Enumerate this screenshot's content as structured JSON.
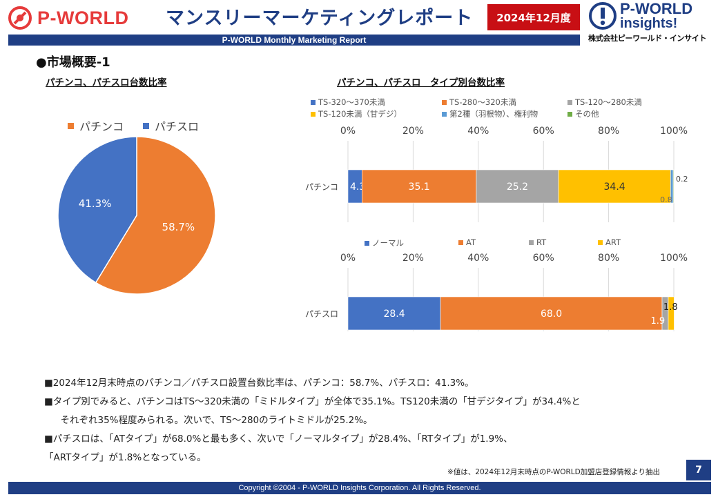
{
  "header": {
    "logo_text": "P-WORLD",
    "title": "マンスリーマーケティングレポート",
    "period": "2024年12月度",
    "subtitle": "P-WORLD Monthly Marketing Report",
    "brand_line1": "P-WORLD",
    "brand_line2": "insights!",
    "company": "株式会社ピーワールド・インサイト",
    "colors": {
      "navy": "#1f3e84",
      "red": "#c80f14",
      "logo_red": "#e63b3b"
    }
  },
  "section_title": "●市場概要-1",
  "chart_data": [
    {
      "type": "pie",
      "title": "パチンコ、パチスロ台数比率",
      "slices": [
        {
          "name": "パチンコ",
          "value": 58.7,
          "label": "58.7%",
          "color": "#ed7d31"
        },
        {
          "name": "パチスロ",
          "value": 41.3,
          "label": "41.3%",
          "color": "#4472c4"
        }
      ],
      "legend": "top"
    },
    {
      "type": "bar",
      "orientation": "horizontal-stacked",
      "title": "パチンコ、パチスロ　タイプ別台数比率",
      "axis_ticks": [
        "0%",
        "20%",
        "40%",
        "60%",
        "80%",
        "100%"
      ],
      "xlim": [
        0,
        100
      ],
      "category": "パチンコ",
      "series": [
        {
          "name": "TS-320～370未満",
          "value": 4.3,
          "label": "4.3",
          "color": "#4472c4"
        },
        {
          "name": "TS-280～320未満",
          "value": 35.1,
          "label": "35.1",
          "color": "#ed7d31"
        },
        {
          "name": "TS-120～280未満",
          "value": 25.2,
          "label": "25.2",
          "color": "#a5a5a5"
        },
        {
          "name": "TS-120未満（甘デジ）",
          "value": 34.4,
          "label": "34.4",
          "color": "#ffc000"
        },
        {
          "name": "第2種（羽根物）、権利物",
          "value": 0.8,
          "label": "0.8",
          "color": "#5b9bd5"
        },
        {
          "name": "その他",
          "value": 0.2,
          "label": "0.2",
          "color": "#70ad47"
        }
      ],
      "legend": "top"
    },
    {
      "type": "bar",
      "orientation": "horizontal-stacked",
      "axis_ticks": [
        "0%",
        "20%",
        "40%",
        "60%",
        "80%",
        "100%"
      ],
      "xlim": [
        0,
        100
      ],
      "category": "パチスロ",
      "series": [
        {
          "name": "ノーマル",
          "value": 28.4,
          "label": "28.4",
          "color": "#4472c4"
        },
        {
          "name": "AT",
          "value": 68.0,
          "label": "68.0",
          "color": "#ed7d31"
        },
        {
          "name": "RT",
          "value": 1.9,
          "label": "1.9",
          "color": "#a5a5a5"
        },
        {
          "name": "ART",
          "value": 1.8,
          "label": "1.8",
          "color": "#ffc000"
        }
      ],
      "legend": "top"
    }
  ],
  "notes": [
    "■2024年12月末時点のパチンコ／パチスロ設置台数比率は、パチンコ：58.7%、パチスロ：41.3%。",
    "■タイプ別でみると、パチンコはTS～320未満の「ミドルタイプ」が全体で35.1%。TS120未満の「甘デジタイプ」が34.4%と",
    "　それぞれ35%程度みられる。次いで、TS～280のライトミドルが25.2%。",
    "■パチスロは、「ATタイプ」が68.0%と最も多く、次いで「ノーマルタイプ」が28.4%、「RTタイプ」が1.9%、",
    "「ARTタイプ」が1.8%となっている。"
  ],
  "source_note": "※値は、2024年12月末時点のP-WORLD加盟店登録情報より抽出",
  "page_number": "7",
  "copyright": "Copyright ©2004 -  P-WORLD Insights Corporation. All Rights Reserved."
}
